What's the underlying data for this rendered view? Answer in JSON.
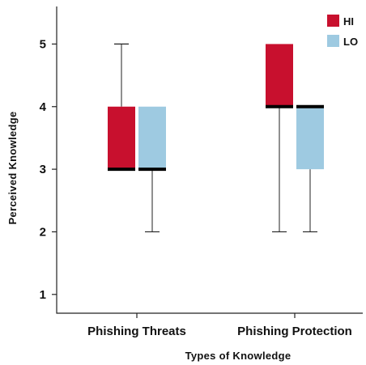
{
  "chart_data": {
    "type": "box",
    "xlabel": "Types of Knowledge",
    "ylabel": "Perceived Knowledge",
    "ylim": [
      0.7,
      5.6
    ],
    "yticks": [
      1,
      2,
      3,
      4,
      5
    ],
    "categories": [
      "Phishing Threats",
      "Phishing Protection"
    ],
    "legend_position": "top-right",
    "grid": false,
    "series": [
      {
        "name": "HI",
        "color": "#c8102e",
        "boxes": [
          {
            "min": 3,
            "q1": 3,
            "median": 3,
            "q3": 4,
            "max": 5
          },
          {
            "min": 2,
            "q1": 4,
            "median": 4,
            "q3": 5,
            "max": 5
          }
        ]
      },
      {
        "name": "LO",
        "color": "#9ecae1",
        "boxes": [
          {
            "min": 2,
            "q1": 3,
            "median": 3,
            "q3": 4,
            "max": 4
          },
          {
            "min": 2,
            "q1": 3,
            "median": 4,
            "q3": 4,
            "max": 4
          }
        ]
      }
    ]
  }
}
